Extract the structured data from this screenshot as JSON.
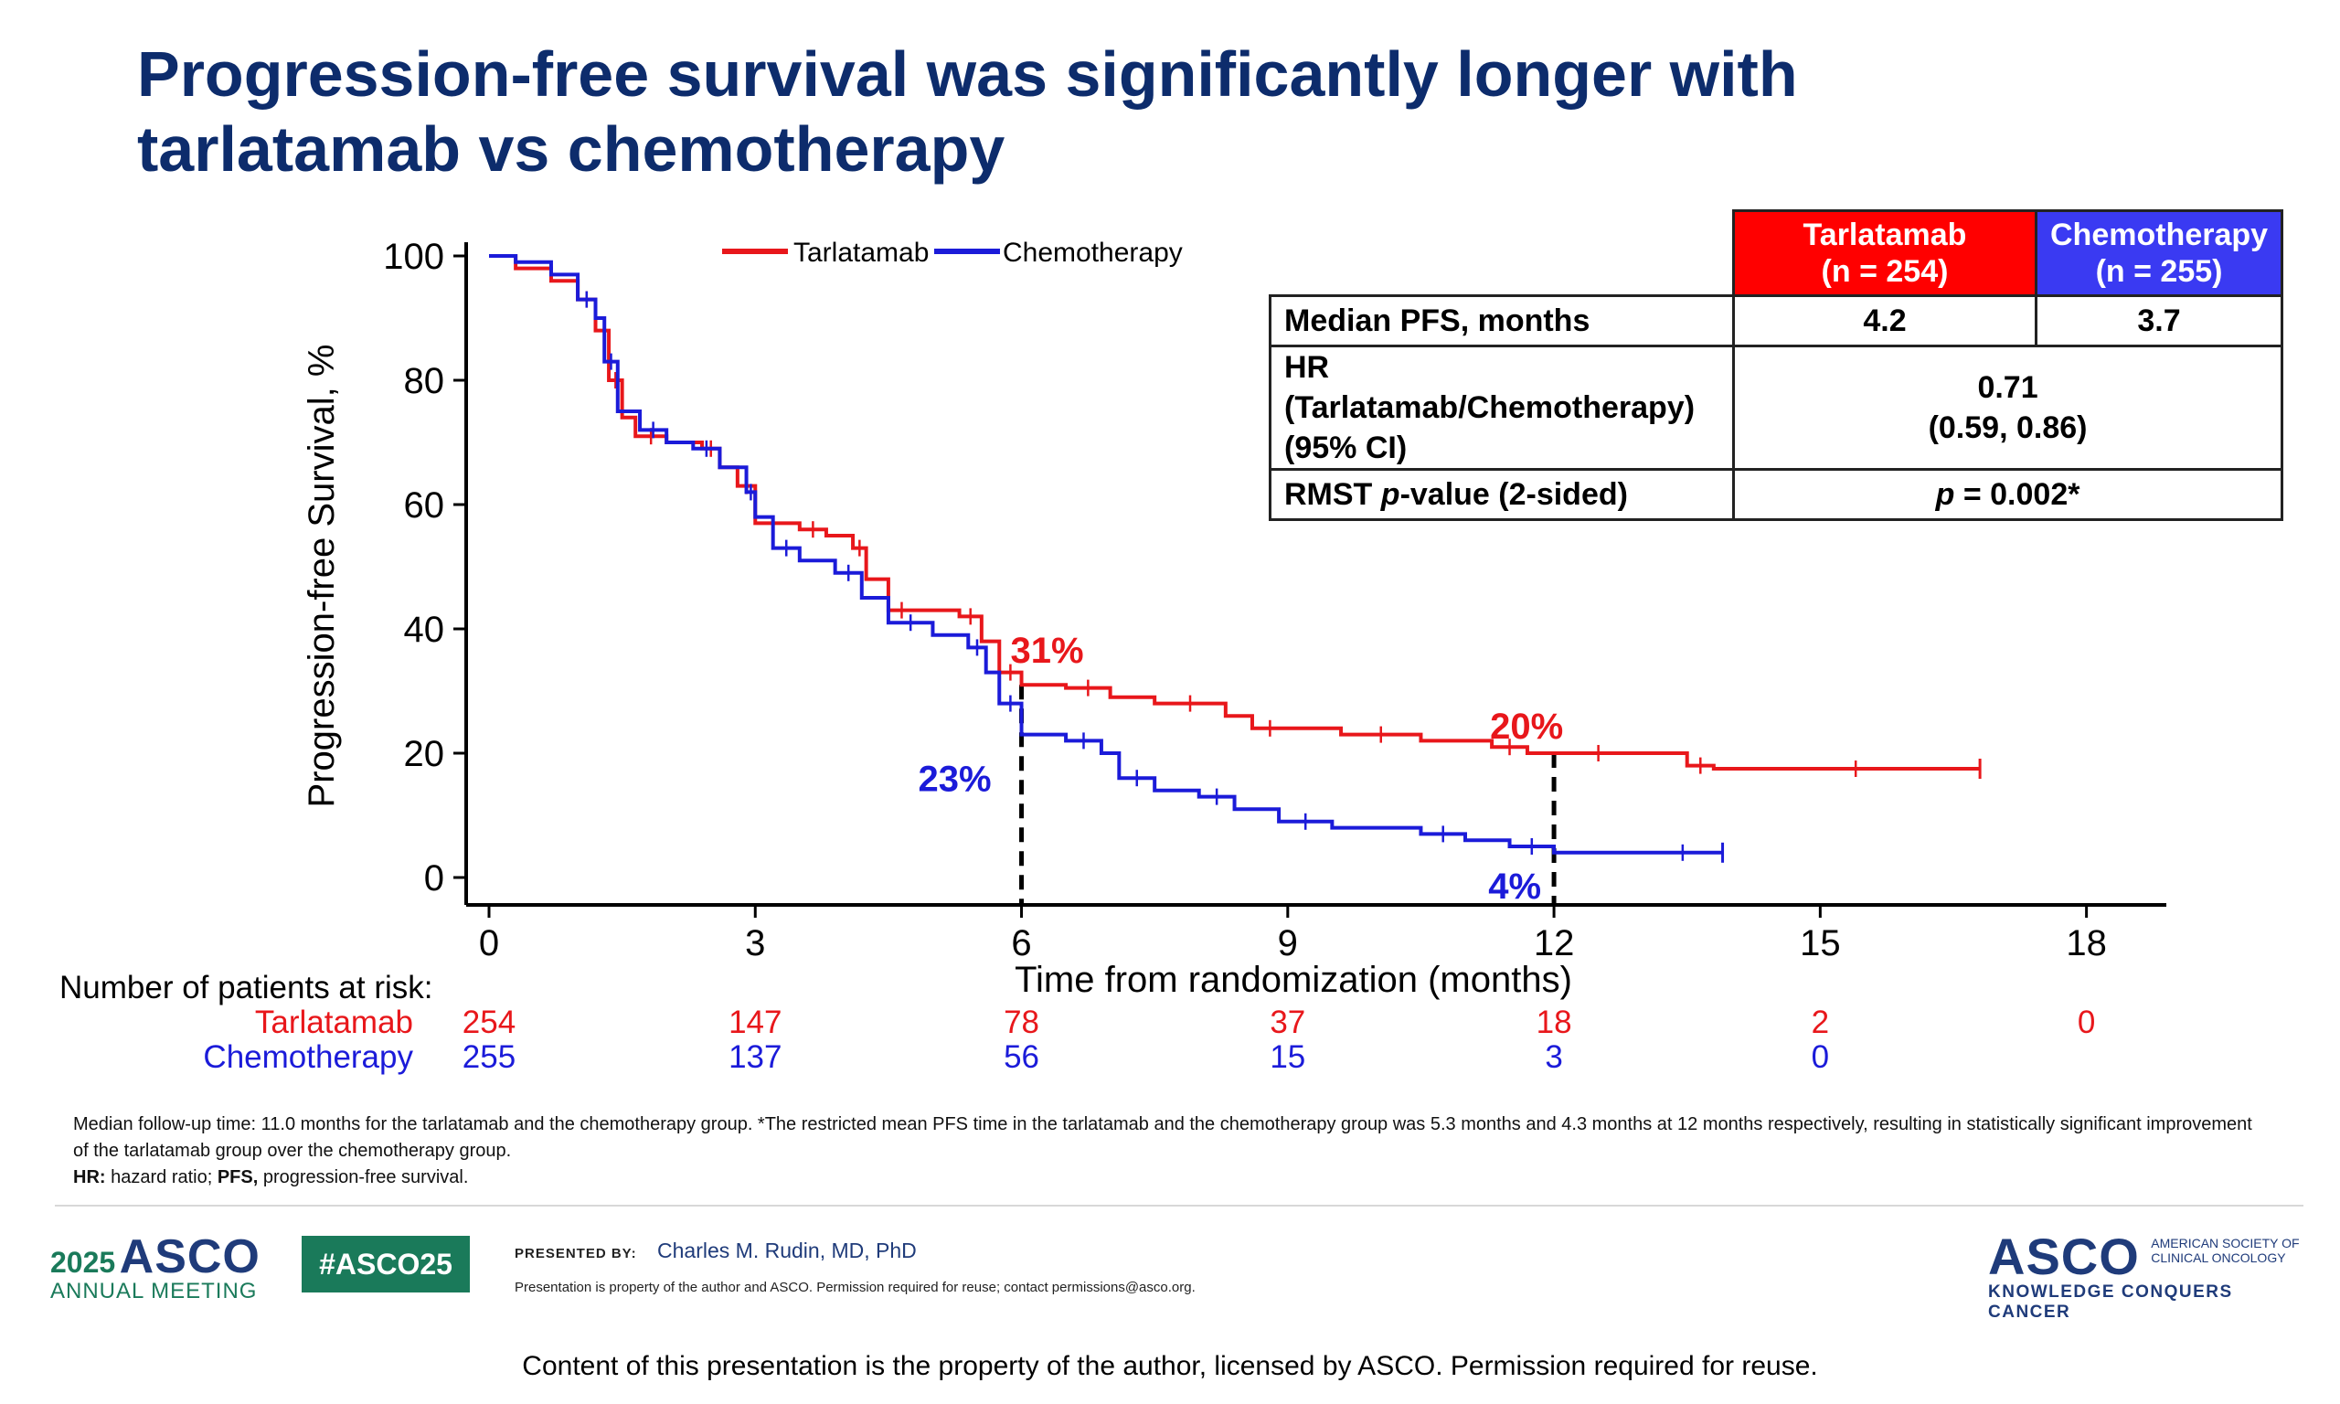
{
  "slide": {
    "title_line1": "Progression-free survival was significantly longer with",
    "title_line2": "tarlatamab vs chemotherapy"
  },
  "chart_data": {
    "type": "line",
    "title": "",
    "xlabel": "Time from randomization (months)",
    "ylabel": "Progression-free Survival, %",
    "xlim": [
      0,
      18.9
    ],
    "ylim": [
      0,
      100
    ],
    "x_ticks": [
      0,
      3,
      6,
      9,
      12,
      15,
      18
    ],
    "y_ticks": [
      0,
      20,
      40,
      60,
      80,
      100
    ],
    "grid": false,
    "legend_position": "top-center",
    "series": [
      {
        "name": "Tarlatamab",
        "color": "#e8171b",
        "x": [
          0,
          0.3,
          0.7,
          1.0,
          1.2,
          1.35,
          1.5,
          1.65,
          2.0,
          2.4,
          2.6,
          2.8,
          3.0,
          3.5,
          3.8,
          4.1,
          4.25,
          4.5,
          4.8,
          5.3,
          5.55,
          5.75,
          6.0,
          6.5,
          7.0,
          7.5,
          8.3,
          8.6,
          9.0,
          9.6,
          10.5,
          11.3,
          11.7,
          12.0,
          13.0,
          13.5,
          13.8,
          14.0,
          16.8
        ],
        "y": [
          100,
          98,
          96,
          93,
          88,
          80,
          74,
          71,
          70,
          69,
          66,
          63,
          57,
          56,
          55,
          53,
          48,
          43,
          43,
          42,
          38,
          33,
          31,
          30.5,
          29,
          28,
          26,
          24,
          24,
          23,
          22,
          21,
          20,
          20,
          20,
          18,
          17.5,
          17.5,
          17.5
        ],
        "landmarks": [
          {
            "x": 6,
            "y": 31,
            "label": "31%"
          },
          {
            "x": 12,
            "y": 20,
            "label": "20%"
          }
        ]
      },
      {
        "name": "Chemotherapy",
        "color": "#1b1bd9",
        "x": [
          0,
          0.3,
          0.7,
          1.0,
          1.2,
          1.3,
          1.45,
          1.7,
          2.0,
          2.3,
          2.6,
          2.9,
          3.0,
          3.2,
          3.5,
          3.9,
          4.2,
          4.5,
          5.0,
          5.4,
          5.6,
          5.75,
          6.0,
          6.5,
          6.9,
          7.1,
          7.5,
          8.0,
          8.4,
          8.9,
          9.5,
          10.5,
          11.0,
          11.5,
          12.0,
          13.0,
          13.9
        ],
        "y": [
          100,
          99,
          97,
          93,
          90,
          83,
          75,
          72,
          70,
          69,
          66,
          62,
          58,
          53,
          51,
          49,
          45,
          41,
          39,
          37,
          33,
          28,
          23,
          22,
          20,
          16,
          14,
          13,
          11,
          9,
          8,
          7,
          6,
          5,
          4,
          4,
          4
        ],
        "landmarks": [
          {
            "x": 6,
            "y": 23,
            "label": "23%"
          },
          {
            "x": 12,
            "y": 4,
            "label": "4%"
          }
        ]
      }
    ],
    "risk_table": {
      "heading": "Number of patients at risk:",
      "timepoints": [
        0,
        3,
        6,
        9,
        12,
        15,
        18
      ],
      "rows": [
        {
          "label": "Tarlatamab",
          "color": "#e8171b",
          "values": [
            "254",
            "147",
            "78",
            "37",
            "18",
            "2",
            "0"
          ]
        },
        {
          "label": "Chemotherapy",
          "color": "#1b1bd9",
          "values": [
            "255",
            "137",
            "56",
            "15",
            "3",
            "0",
            ""
          ]
        }
      ]
    }
  },
  "stats_table": {
    "col_tarla_line1": "Tarlatamab",
    "col_tarla_line2": "(n = 254)",
    "col_chemo_line1": "Chemotherapy",
    "col_chemo_line2": "(n = 255)",
    "tarla_color": "#ff0000",
    "chemo_color": "#3a3af2",
    "median_label": "Median PFS, months",
    "median_tarla": "4.2",
    "median_chemo": "3.7",
    "hr_label_line1": "HR (Tarlatamab/Chemotherapy)",
    "hr_label_line2": "(95% CI)",
    "hr_value": "0.71",
    "hr_ci": "(0.59, 0.86)",
    "rmst_label_pre": "RMST ",
    "rmst_label_italic": "p",
    "rmst_label_post": "-value (2-sided)",
    "rmst_p_italic": "p",
    "rmst_value": " = 0.002*"
  },
  "footnotes": {
    "line1": "Median follow-up time: 11.0 months for the tarlatamab and the chemotherapy group. *The restricted mean PFS time in the tarlatamab and the chemotherapy group was 5.3 months and 4.3 months at 12 months respectively, resulting in statistically significant improvement of the tarlatamab group over the chemotherapy group.",
    "hr_abbr": "HR:",
    "hr_text": " hazard ratio; ",
    "pfs_abbr": "PFS,",
    "pfs_text": " progression-free survival."
  },
  "footer": {
    "year": "2025",
    "asco": "ASCO",
    "annual_meeting": "ANNUAL MEETING",
    "hashtag": "#ASCO25",
    "presented_by": "PRESENTED BY:",
    "presenter": "Charles M. Rudin, MD, PhD",
    "property_note": "Presentation is property of the author and ASCO. Permission required for reuse; contact permissions@asco.org.",
    "asco_right": "ASCO",
    "society_line1": "AMERICAN SOCIETY OF",
    "society_line2": "CLINICAL ONCOLOGY",
    "tagline": "KNOWLEDGE CONQUERS CANCER",
    "content_note": "Content of this presentation is the property of the author, licensed by ASCO. Permission required for reuse.",
    "hashtag_color": "#1a7a5a",
    "navy_color": "#1f3b7a"
  }
}
